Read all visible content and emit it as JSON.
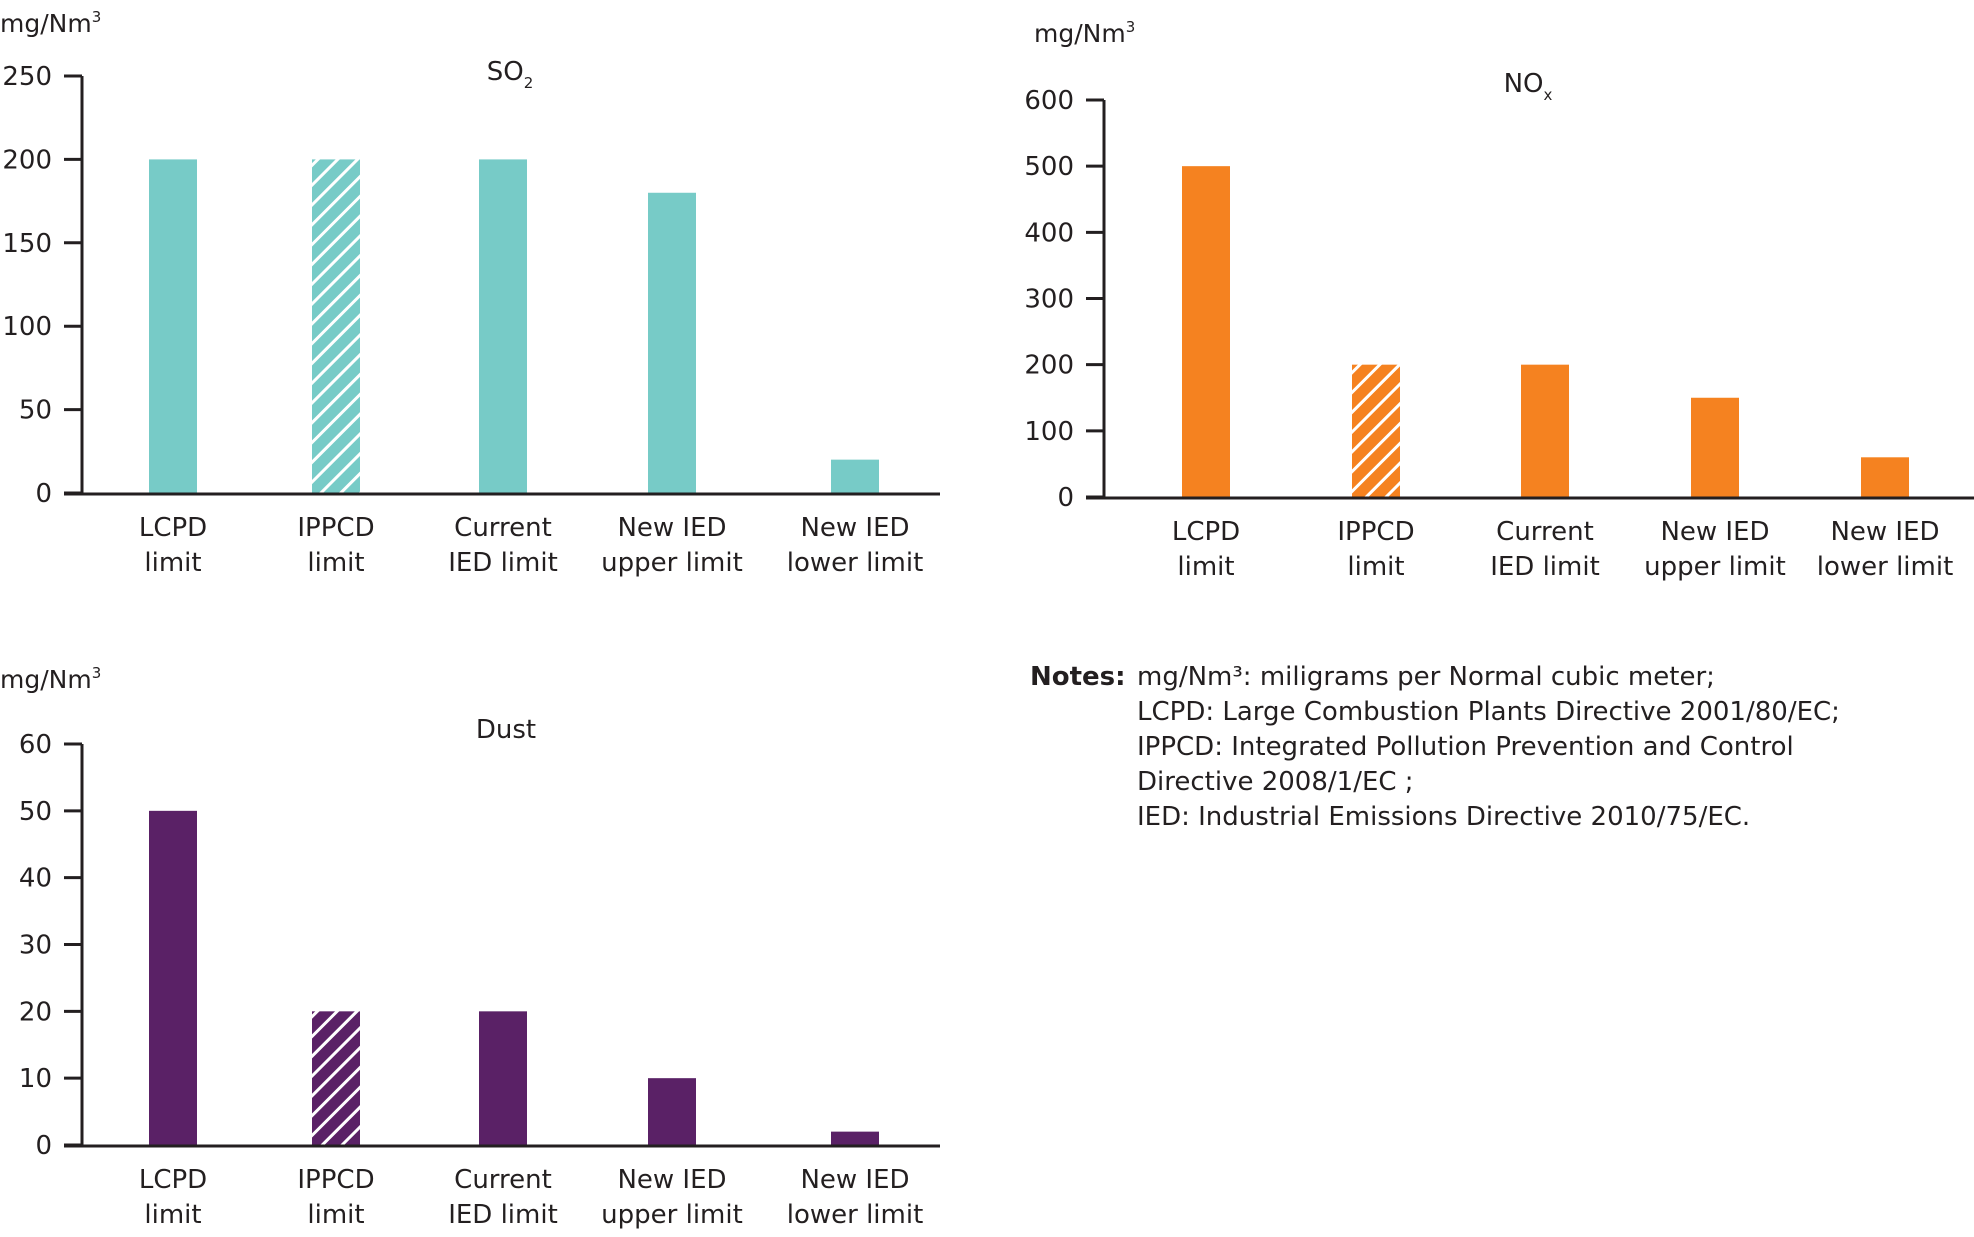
{
  "chart_data": [
    {
      "type": "bar",
      "title": "SO",
      "title_sub": "2",
      "ylabel": "mg/Nm",
      "ylabel_sup": "3",
      "categories": [
        [
          "LCPD",
          "limit"
        ],
        [
          "IPPCD",
          "limit"
        ],
        [
          "Current",
          "IED limit"
        ],
        [
          "New IED",
          "upper limit"
        ],
        [
          "New IED",
          "lower limit"
        ]
      ],
      "values": [
        200,
        200,
        200,
        180,
        20
      ],
      "hatched": [
        false,
        true,
        false,
        false,
        false
      ],
      "color": "#77cbc7",
      "ylim": [
        0,
        250
      ],
      "yticks": [
        0,
        50,
        100,
        150,
        200,
        250
      ],
      "grid": false
    },
    {
      "type": "bar",
      "title": "NO",
      "title_sub": "x",
      "ylabel": "mg/Nm",
      "ylabel_sup": "3",
      "categories": [
        [
          "LCPD",
          "limit"
        ],
        [
          "IPPCD",
          "limit"
        ],
        [
          "Current",
          "IED limit"
        ],
        [
          "New IED",
          "upper limit"
        ],
        [
          "New IED",
          "lower limit"
        ]
      ],
      "values": [
        500,
        200,
        200,
        150,
        60
      ],
      "hatched": [
        false,
        true,
        false,
        false,
        false
      ],
      "color": "#f58220",
      "ylim": [
        0,
        600
      ],
      "yticks": [
        0,
        100,
        200,
        300,
        400,
        500,
        600
      ],
      "grid": false
    },
    {
      "type": "bar",
      "title": "Dust",
      "title_sub": "",
      "ylabel": "mg/Nm",
      "ylabel_sup": "3",
      "categories": [
        [
          "LCPD",
          "limit"
        ],
        [
          "IPPCD",
          "limit"
        ],
        [
          "Current",
          "IED limit"
        ],
        [
          "New IED",
          "upper limit"
        ],
        [
          "New IED",
          "lower limit"
        ]
      ],
      "values": [
        50,
        20,
        20,
        10,
        2
      ],
      "hatched": [
        false,
        true,
        false,
        false,
        false
      ],
      "color": "#5a2166",
      "ylim": [
        0,
        60
      ],
      "yticks": [
        0,
        10,
        20,
        30,
        40,
        50,
        60
      ],
      "grid": false
    }
  ],
  "notes": {
    "heading": "Notes:",
    "lines": [
      "mg/Nm³: miligrams per Normal cubic meter;",
      "LCPD: Large Combustion Plants Directive 2001/80/EC;",
      "IPPCD: Integrated Pollution Prevention and Control",
      "Directive 2008/1/EC ;",
      "IED: Industrial Emissions Directive 2010/75/EC."
    ]
  }
}
